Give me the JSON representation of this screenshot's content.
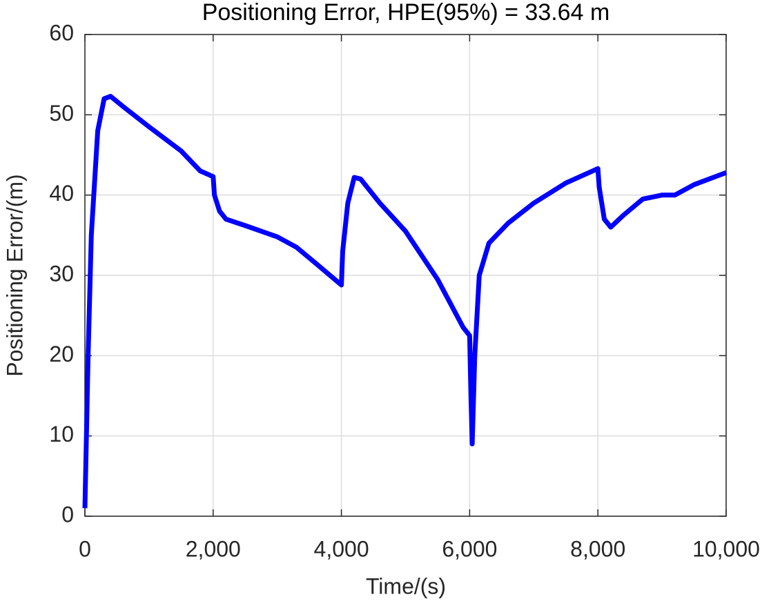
{
  "chart_data": {
    "type": "line",
    "title": "Positioning Error, HPE(95%) = 33.64 m",
    "xlabel": "Time/(s)",
    "ylabel": "Positioning Error/(m)",
    "x": [
      0,
      50,
      100,
      200,
      300,
      400,
      600,
      1000,
      1500,
      1800,
      2000,
      2020,
      2100,
      2200,
      2500,
      3000,
      3300,
      3600,
      4000,
      4020,
      4100,
      4200,
      4300,
      4600,
      5000,
      5500,
      5900,
      6000,
      6020,
      6040,
      6080,
      6150,
      6300,
      6600,
      7000,
      7500,
      8000,
      8020,
      8100,
      8200,
      8400,
      8700,
      9000,
      9200,
      9500,
      10000
    ],
    "values": [
      1,
      20,
      35,
      48,
      52,
      52.3,
      51,
      48.5,
      45.5,
      43,
      42.3,
      40,
      38,
      37,
      36.2,
      34.8,
      33.5,
      31.5,
      28.8,
      33,
      39,
      42.2,
      42,
      39,
      35.5,
      29.5,
      23.5,
      22.5,
      15,
      9,
      20,
      30,
      34,
      36.5,
      39,
      41.5,
      43.3,
      41,
      37,
      36,
      37.5,
      39.5,
      40,
      40,
      41.3,
      42.8
    ],
    "color": "#0000ff",
    "xlim": [
      0,
      10000
    ],
    "xticks": [
      0,
      {
        "value": 2000,
        "label": "2,000"
      },
      {
        "value": 4000,
        "label": "4,000"
      },
      {
        "value": 6000,
        "label": "6,000"
      },
      {
        "value": 8000,
        "label": "8,000"
      },
      {
        "value": 10000,
        "label": "10,000"
      }
    ],
    "ylim": [
      0,
      60
    ],
    "yticks": [
      0,
      10,
      20,
      30,
      40,
      50,
      60
    ],
    "grid": true
  }
}
